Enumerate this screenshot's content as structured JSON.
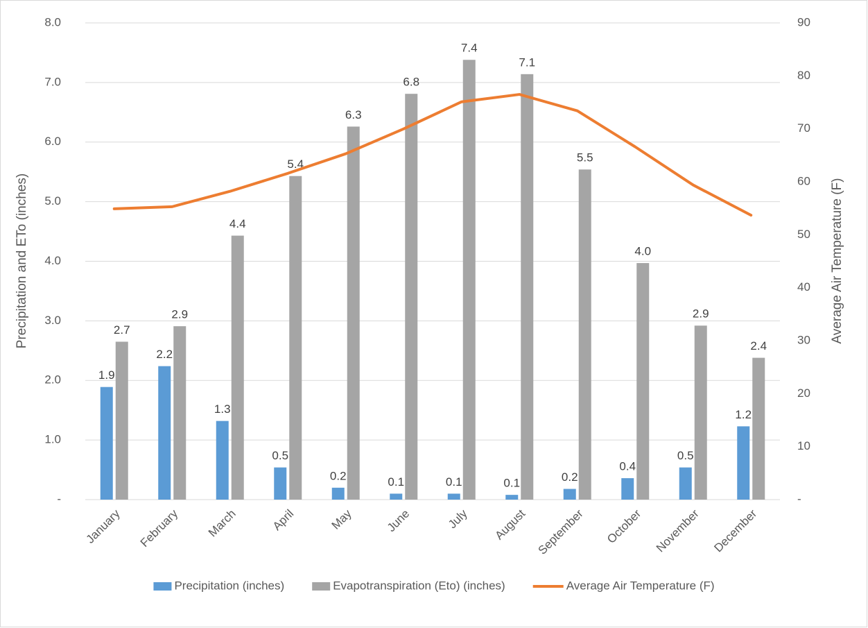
{
  "chart_data": {
    "type": "bar",
    "y_label": "Precipitation and ETo (inches)",
    "y2_label": "Average Air Temperature (F)",
    "categories": [
      "January",
      "February",
      "March",
      "April",
      "May",
      "June",
      "July",
      "August",
      "September",
      "October",
      "November",
      "December"
    ],
    "series": [
      {
        "name": "Precipitation (inches)",
        "color": "#5b9bd5",
        "values": [
          1.89,
          2.24,
          1.32,
          0.54,
          0.2,
          0.1,
          0.1,
          0.08,
          0.18,
          0.36,
          0.54,
          1.23
        ],
        "value_labels": [
          "1.9",
          "2.2",
          "1.3",
          "0.5",
          "0.2",
          "0.1",
          "0.1",
          "0.1",
          "0.2",
          "0.4",
          "0.5",
          "1.2"
        ]
      },
      {
        "name": "Evapotranspiration (Eto) (inches)",
        "color": "#a5a5a5",
        "values": [
          2.65,
          2.91,
          4.43,
          5.43,
          6.26,
          6.81,
          7.38,
          7.14,
          5.54,
          3.97,
          2.92,
          2.38
        ],
        "value_labels": [
          "2.7",
          "2.9",
          "4.4",
          "5.4",
          "6.3",
          "6.8",
          "7.4",
          "7.1",
          "5.5",
          "4.0",
          "2.9",
          "2.4"
        ]
      },
      {
        "name": "Average Air Temperature (F)",
        "color": "#ed7d31",
        "type": "line",
        "axis": "y2",
        "values": [
          54.9,
          55.3,
          58.2,
          61.6,
          65.3,
          70.0,
          75.1,
          76.5,
          73.4,
          66.6,
          59.4,
          53.7
        ]
      }
    ],
    "ylim": [
      0,
      8
    ],
    "yticks": [
      {
        "value": 0,
        "label": "-"
      },
      {
        "value": 1,
        "label": "1.0"
      },
      {
        "value": 2,
        "label": "2.0"
      },
      {
        "value": 3,
        "label": "3.0"
      },
      {
        "value": 4,
        "label": "4.0"
      },
      {
        "value": 5,
        "label": "5.0"
      },
      {
        "value": 6,
        "label": "6.0"
      },
      {
        "value": 7,
        "label": "7.0"
      },
      {
        "value": 8,
        "label": "8.0"
      }
    ],
    "y2lim": [
      0,
      90
    ],
    "y2ticks": [
      {
        "value": 0,
        "label": "-"
      },
      10,
      20,
      30,
      40,
      50,
      60,
      70,
      80,
      90
    ],
    "grid": true,
    "legend": "bottom"
  }
}
